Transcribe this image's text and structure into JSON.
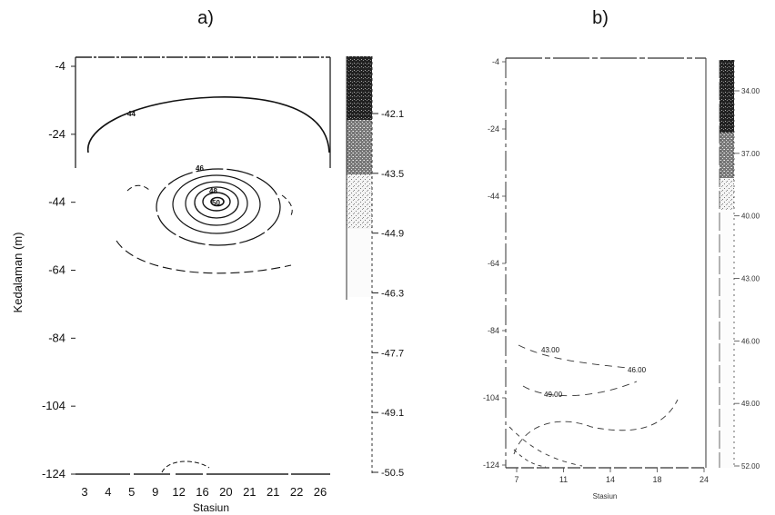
{
  "chart_data": [
    {
      "type": "contour",
      "panel_label": "a)",
      "xlabel": "Stasiun",
      "ylabel": "Kedalaman (m)",
      "x_tick_labels": [
        "3",
        "4",
        "5",
        "9",
        "12",
        "16",
        "20",
        "21",
        "21",
        "22",
        "26"
      ],
      "y_ticks": [
        -4,
        -24,
        -44,
        -64,
        -84,
        -104,
        -124
      ],
      "y_tick_labels": [
        "-4",
        "-24",
        "-44",
        "-64",
        "-84",
        "-104",
        "-124"
      ],
      "ylim": [
        -124,
        -4
      ],
      "colorbar_levels": [
        "-42.1",
        "-43.5",
        "-44.9",
        "-46.3",
        "-47.7",
        "-49.1",
        "-50.5"
      ],
      "contours": [
        {
          "label": "44",
          "level": -44.0,
          "shape": "outer-arc"
        },
        {
          "label": "46",
          "level": -46.0,
          "shape": "closed-ring"
        },
        {
          "label": "48",
          "level": -48.0,
          "shape": "closed-ring"
        },
        {
          "label": "50",
          "level": -50.0,
          "shape": "center"
        }
      ]
    },
    {
      "type": "contour",
      "panel_label": "b)",
      "xlabel": "Stasiun",
      "ylabel": "",
      "x_tick_labels": [
        "7",
        "11",
        "14",
        "18",
        "24"
      ],
      "y_tick_labels": [
        "-4",
        "-24",
        "-44",
        "-64",
        "-84",
        "-104",
        "-124"
      ],
      "ylim": [
        -124,
        -4
      ],
      "colorbar_levels": [
        "34.00",
        "37.00",
        "40.00",
        "43.00",
        "46.00",
        "49.00",
        "52.00"
      ],
      "contours": [
        {
          "label": "43.00",
          "level": 43.0
        },
        {
          "label": "46.00",
          "level": 46.0
        },
        {
          "label": "49.00",
          "level": 49.0
        }
      ]
    }
  ]
}
